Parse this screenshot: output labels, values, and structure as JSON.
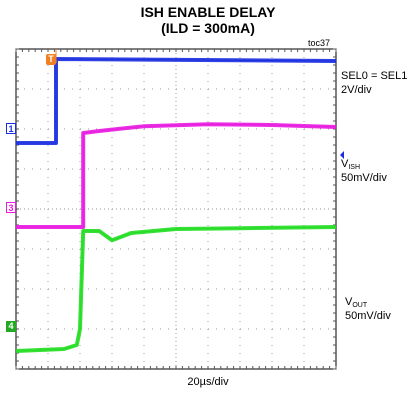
{
  "title_line1": "ISH ENABLE DELAY",
  "title_line2": "(ILD = 300mA)",
  "figure_id": "toc37",
  "horizontal_scale": "20µs/div",
  "channel_labels": {
    "ch1_line1": "SEL0 = SEL1",
    "ch1_line2": "2V/div",
    "ch3_name": "V",
    "ch3_sub": "ISH",
    "ch3_scale": "50mV/div",
    "ch4_name": "V",
    "ch4_sub": "OUT",
    "ch4_scale": "50mV/div"
  },
  "markers": {
    "ch1": "1",
    "ch3": "3",
    "ch4": "4",
    "trigger": "T"
  },
  "colors": {
    "ch1": "#1a2ee0",
    "ch3": "#e81ae0",
    "ch4": "#22dd22",
    "grid": "#9a9a9a",
    "marker": "#f08020"
  },
  "chart_data": {
    "type": "line",
    "title": "ISH ENABLE DELAY (ILD = 300mA)",
    "xlabel": "20µs/div",
    "grid": true,
    "divisions": {
      "x": 10,
      "y": 8
    },
    "series": [
      {
        "name": "SEL0 = SEL1",
        "scale": "2V/div",
        "color": "#1a2ee0",
        "points": [
          [
            0,
            2.35
          ],
          [
            1.25,
            2.35
          ],
          [
            1.25,
            0.25
          ],
          [
            10,
            0.3
          ]
        ]
      },
      {
        "name": "VISH",
        "scale": "50mV/div",
        "color": "#e81ae0",
        "points": [
          [
            0,
            4.45
          ],
          [
            1.25,
            4.45
          ],
          [
            2.1,
            4.45
          ],
          [
            2.1,
            2.1
          ],
          [
            2.6,
            2.05
          ],
          [
            4,
            1.93
          ],
          [
            6,
            1.88
          ],
          [
            8,
            1.9
          ],
          [
            10,
            1.95
          ]
        ]
      },
      {
        "name": "VOUT",
        "scale": "50mV/div",
        "color": "#22dd22",
        "points": [
          [
            0,
            7.55
          ],
          [
            1.5,
            7.5
          ],
          [
            1.9,
            7.4
          ],
          [
            2.0,
            7.0
          ],
          [
            2.1,
            4.55
          ],
          [
            2.6,
            4.55
          ],
          [
            3.0,
            4.78
          ],
          [
            3.6,
            4.6
          ],
          [
            5,
            4.5
          ],
          [
            7,
            4.48
          ],
          [
            10,
            4.45
          ]
        ]
      }
    ]
  }
}
